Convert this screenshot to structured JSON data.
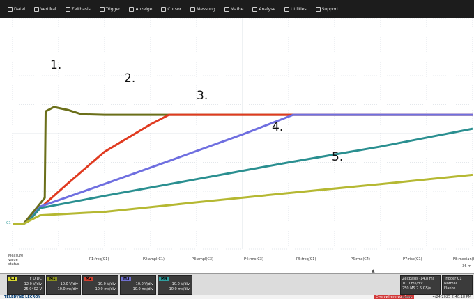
{
  "menu": [
    {
      "label": "Datei",
      "icon": "folder-icon"
    },
    {
      "label": "Vertikal",
      "icon": "vertical-icon"
    },
    {
      "label": "Zeitbasis",
      "icon": "timebase-icon"
    },
    {
      "label": "Trigger",
      "icon": "trigger-icon"
    },
    {
      "label": "Anzeige",
      "icon": "display-icon"
    },
    {
      "label": "Cursor",
      "icon": "cursor-icon"
    },
    {
      "label": "Messung",
      "icon": "measure-icon"
    },
    {
      "label": "Mathe",
      "icon": "math-icon"
    },
    {
      "label": "Analyse",
      "icon": "analysis-icon"
    },
    {
      "label": "Utilities",
      "icon": "tools-icon"
    },
    {
      "label": "Support",
      "icon": "help-icon"
    }
  ],
  "labels": [
    "1.",
    "2.",
    "3.",
    "4.",
    "5."
  ],
  "chart_data": {
    "type": "line",
    "grid": true,
    "series": [
      {
        "color": "#6b6f1a",
        "points": [
          [
            0,
            0
          ],
          [
            0.24,
            0
          ],
          [
            0.7,
            0.9
          ],
          [
            0.72,
            3.9
          ],
          [
            0.9,
            4.05
          ],
          [
            1.2,
            3.95
          ],
          [
            1.5,
            3.8
          ],
          [
            2,
            3.78
          ],
          [
            10,
            3.78
          ]
        ]
      },
      {
        "color": "#e03a20",
        "points": [
          [
            0,
            0
          ],
          [
            0.24,
            0
          ],
          [
            0.35,
            0.1
          ],
          [
            0.6,
            0.55
          ],
          [
            1.2,
            1.4
          ],
          [
            2,
            2.5
          ],
          [
            3,
            3.45
          ],
          [
            3.4,
            3.78
          ],
          [
            10,
            3.78
          ]
        ]
      },
      {
        "color": "#6f6fe0",
        "points": [
          [
            0,
            0
          ],
          [
            0.24,
            0
          ],
          [
            0.35,
            0.1
          ],
          [
            0.6,
            0.6
          ],
          [
            1.5,
            1.1
          ],
          [
            3,
            1.95
          ],
          [
            5,
            3.1
          ],
          [
            6.1,
            3.78
          ],
          [
            10,
            3.78
          ]
        ]
      },
      {
        "color": "#2a8f90",
        "points": [
          [
            0,
            0
          ],
          [
            0.24,
            0
          ],
          [
            0.35,
            0.1
          ],
          [
            0.6,
            0.55
          ],
          [
            2,
            0.97
          ],
          [
            4,
            1.55
          ],
          [
            6,
            2.13
          ],
          [
            8,
            2.68
          ],
          [
            10,
            3.3
          ]
        ]
      },
      {
        "color": "#b5b832",
        "points": [
          [
            0,
            0
          ],
          [
            0.24,
            0
          ],
          [
            0.35,
            0.1
          ],
          [
            0.6,
            0.3
          ],
          [
            2,
            0.42
          ],
          [
            4,
            0.75
          ],
          [
            6,
            1.07
          ],
          [
            8,
            1.38
          ],
          [
            10,
            1.7
          ]
        ]
      }
    ]
  },
  "measure": {
    "header": [
      "Measure",
      "value",
      "status"
    ],
    "params": [
      "P1:freq(C1)",
      "P2:ampl(C1)",
      "P3:ampl(C3)",
      "P4:rms(C3)",
      "P5:freq(C1)",
      "P6:rms(C4)",
      "P7:rise(C1)",
      "P8:median(C4)"
    ],
    "p6_value": "---",
    "p8_unit": "36 m"
  },
  "channels": [
    {
      "tag": "C1",
      "tag_color": "#d8d830",
      "line1": "12.0 V/div",
      "line2": "25.0402 V"
    },
    {
      "tag": "M1",
      "tag_color": "#8a9020",
      "line1": "10.0 V/div",
      "line2": "10.0 ms/div"
    },
    {
      "tag": "M2",
      "tag_color": "#d04030",
      "line1": "10.0 V/div",
      "line2": "10.0 ms/div"
    },
    {
      "tag": "M3",
      "tag_color": "#7070d0",
      "line1": "10.0 V/div",
      "line2": "10.0 ms/div"
    },
    {
      "tag": "M4",
      "tag_color": "#30a0a0",
      "line1": "10.0 V/div",
      "line2": "10.0 ms/div"
    }
  ],
  "ch1_extra": "F D DC",
  "timebase": {
    "lines": [
      "Zeitbasis -14.8 ms",
      "10.0 ms/div",
      "250 MS 2.5 GS/s"
    ]
  },
  "trigger": {
    "lines": [
      "Trigger C1",
      "Normal",
      "Flanke"
    ]
  },
  "footer": {
    "brand": "TELEDYNE LECROY",
    "badge": "Everywhere you look",
    "mode": "Stopp",
    "date": "4/24/2025 2:40:18 PM"
  }
}
